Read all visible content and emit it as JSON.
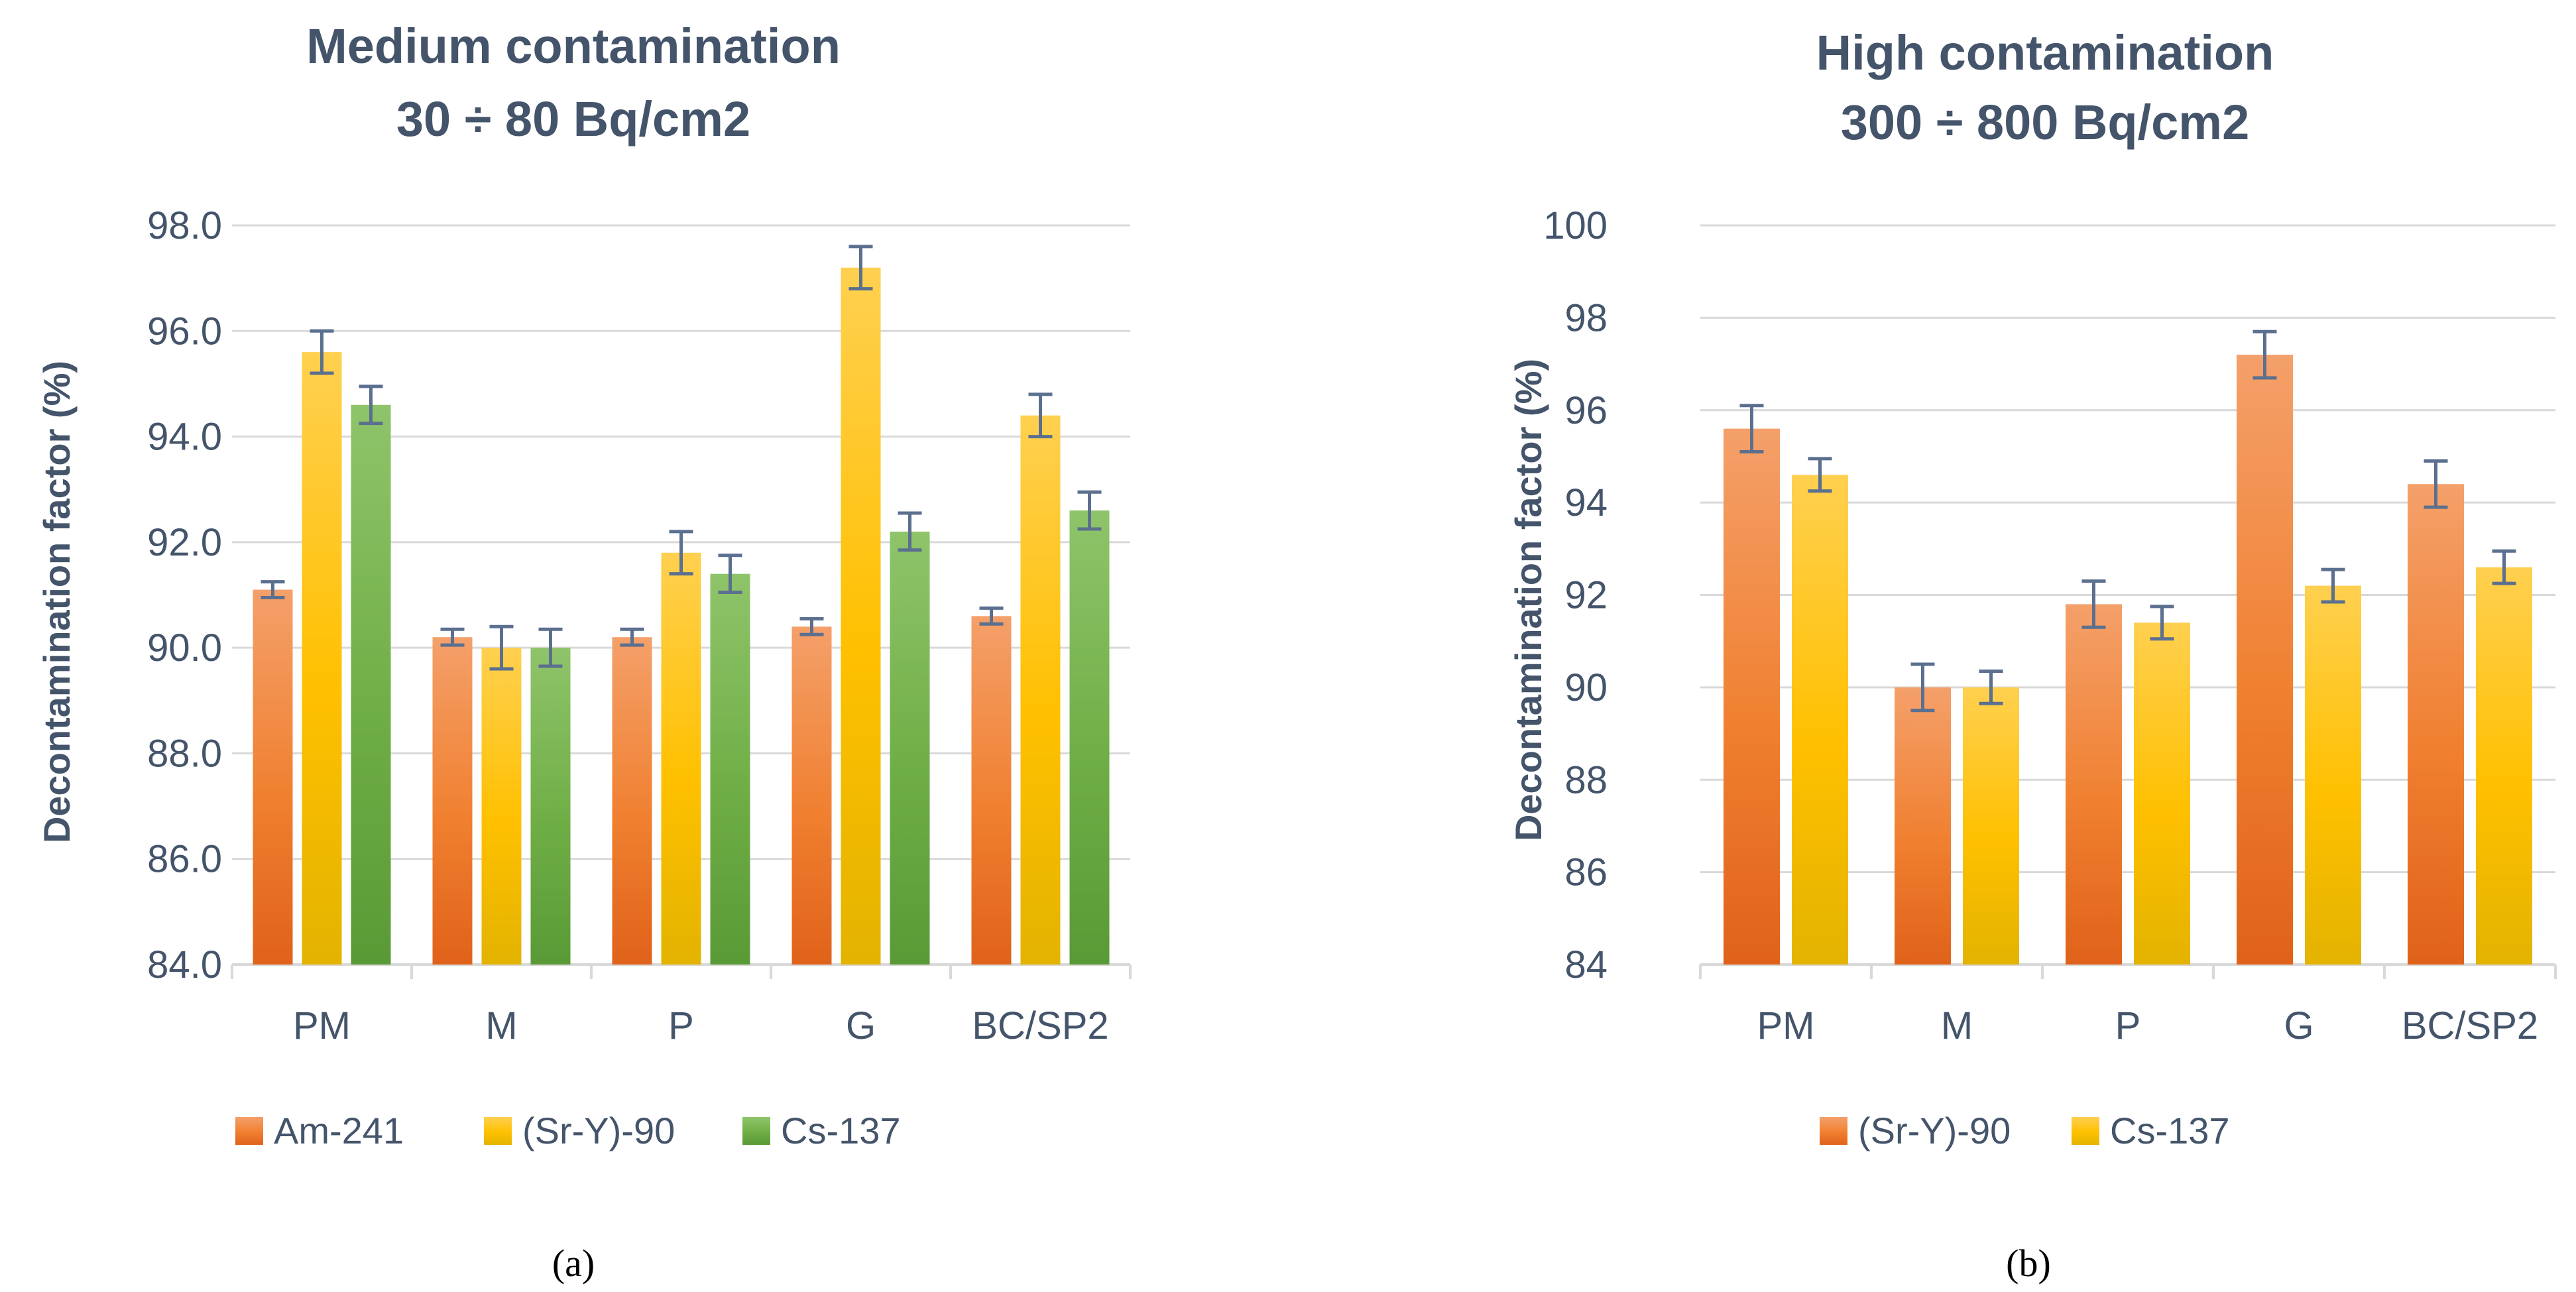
{
  "colors": {
    "orange": "#ed7d31",
    "gold": "#ffc000",
    "green": "#70ad47",
    "text": "#44546a",
    "grid": "#d9d9d9",
    "errorbar": "#5b6f8f"
  },
  "chart_data": [
    {
      "type": "bar",
      "panel": "(a)",
      "title": [
        "Medium contamination",
        "30 ÷ 80 Bq/cm2"
      ],
      "xlabel": "",
      "ylabel": "Decontamination factor (%)",
      "ylim": [
        84,
        98
      ],
      "yticks": [
        "84.0",
        "86.0",
        "88.0",
        "90.0",
        "92.0",
        "94.0",
        "96.0",
        "98.0"
      ],
      "categories": [
        "PM",
        "M",
        "P",
        "G",
        "BC/SP2"
      ],
      "series": [
        {
          "name": "Am-241",
          "color": "orange",
          "values": [
            91.1,
            90.2,
            90.2,
            90.4,
            90.6
          ],
          "errors": [
            0.15,
            0.15,
            0.15,
            0.15,
            0.15
          ]
        },
        {
          "name": "(Sr-Y)-90",
          "color": "gold",
          "values": [
            95.6,
            90.0,
            91.8,
            97.2,
            94.4
          ],
          "errors": [
            0.4,
            0.4,
            0.4,
            0.4,
            0.4
          ]
        },
        {
          "name": "Cs-137",
          "color": "green",
          "values": [
            94.6,
            90.0,
            91.4,
            92.2,
            92.6
          ],
          "errors": [
            0.35,
            0.35,
            0.35,
            0.35,
            0.35
          ]
        }
      ],
      "legend": "bottom"
    },
    {
      "type": "bar",
      "panel": "(b)",
      "title": [
        "High contamination",
        "300 ÷ 800 Bq/cm2"
      ],
      "xlabel": "",
      "ylabel": "Decontamination factor (%)",
      "ylim": [
        84,
        100
      ],
      "yticks": [
        "84",
        "86",
        "88",
        "90",
        "92",
        "94",
        "96",
        "98",
        "100"
      ],
      "categories": [
        "PM",
        "M",
        "P",
        "G",
        "BC/SP2"
      ],
      "series": [
        {
          "name": "(Sr-Y)-90",
          "color": "orange",
          "values": [
            95.6,
            90.0,
            91.8,
            97.2,
            94.4
          ],
          "errors": [
            0.5,
            0.5,
            0.5,
            0.5,
            0.5
          ]
        },
        {
          "name": "Cs-137",
          "color": "gold",
          "values": [
            94.6,
            90.0,
            91.4,
            92.2,
            92.6
          ],
          "errors": [
            0.35,
            0.35,
            0.35,
            0.35,
            0.35
          ]
        }
      ],
      "legend": "bottom"
    }
  ]
}
